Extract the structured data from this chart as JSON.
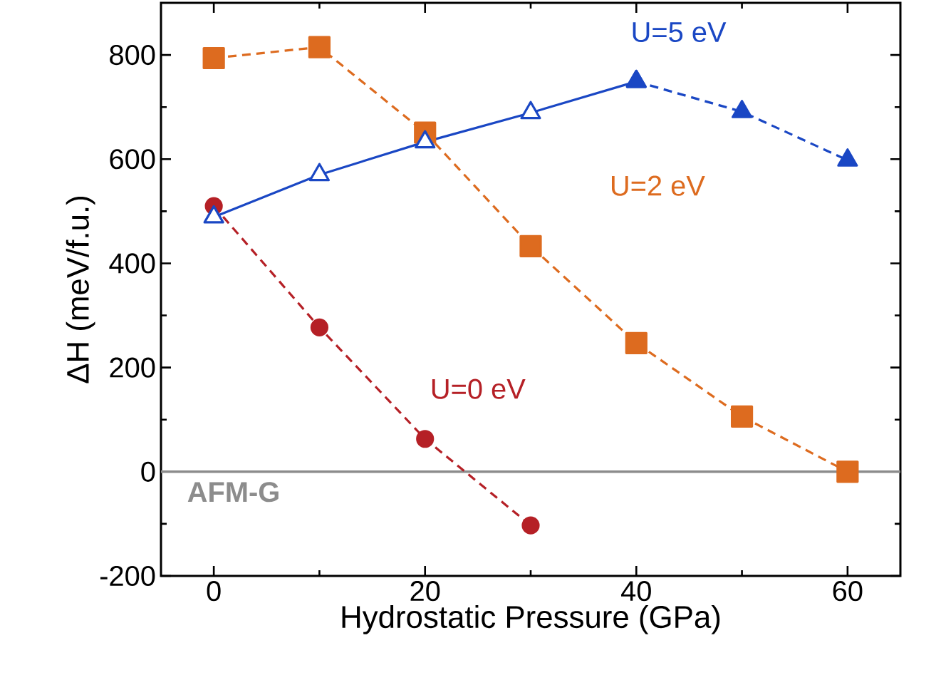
{
  "chart_data": {
    "type": "line",
    "xlabel": "Hydrostatic Pressure (GPa)",
    "ylabel": "ΔH (meV/f.u.)",
    "xlim": [
      -5,
      65
    ],
    "xticks": [
      0,
      20,
      40,
      60
    ],
    "ylim": [
      -200,
      900
    ],
    "yticks": [
      -200,
      0,
      200,
      400,
      600,
      800
    ],
    "grid": false,
    "series": [
      {
        "name": "U=0 eV",
        "color": "#b52026",
        "marker": "circle",
        "line_style": "dashed",
        "x": [
          0,
          10,
          20,
          30
        ],
        "values": [
          510,
          277,
          63,
          -103
        ]
      },
      {
        "name": "U=2 eV",
        "color": "#dd6b1f",
        "marker": "square",
        "line_style": "dashed",
        "x": [
          0,
          10,
          20,
          30,
          40,
          50,
          60
        ],
        "values": [
          794,
          815,
          651,
          433,
          247,
          106,
          0
        ]
      },
      {
        "name": "U=5 eV",
        "color": "#1a47c4",
        "marker": "triangle",
        "line_style": "solid",
        "x": [
          0,
          10,
          20,
          30,
          40
        ],
        "values": [
          489,
          570,
          633,
          689,
          749
        ]
      },
      {
        "color": "#1a47c4",
        "marker": "triangle",
        "line_style": "dashed",
        "x": [
          40,
          50,
          60
        ],
        "values": [
          749,
          691,
          598
        ]
      }
    ],
    "ref_lines": [
      {
        "axis": "y",
        "value": 0,
        "label": "AFM-G",
        "color": "#8c8c8c"
      }
    ]
  }
}
